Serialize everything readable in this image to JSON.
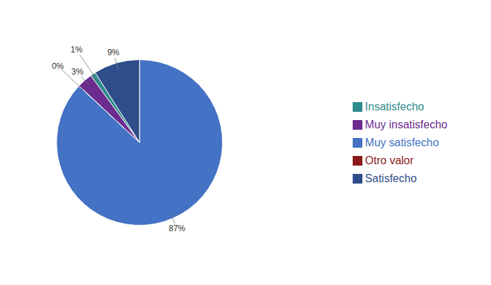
{
  "chart_data": {
    "type": "pie",
    "categories": [
      "Muy satisfecho",
      "Otro valor",
      "Muy insatisfecho",
      "Insatisfecho",
      "Satisfecho"
    ],
    "values": [
      87,
      0.05,
      3,
      1,
      9
    ],
    "value_labels": [
      "87%",
      "0%",
      "3%",
      "1%",
      "9%"
    ],
    "colors": [
      "#4472C4",
      "#8B1A1A",
      "#6B2C8E",
      "#2E8B8B",
      "#2E4D8B"
    ],
    "data_labels": true,
    "legend": "right"
  }
}
